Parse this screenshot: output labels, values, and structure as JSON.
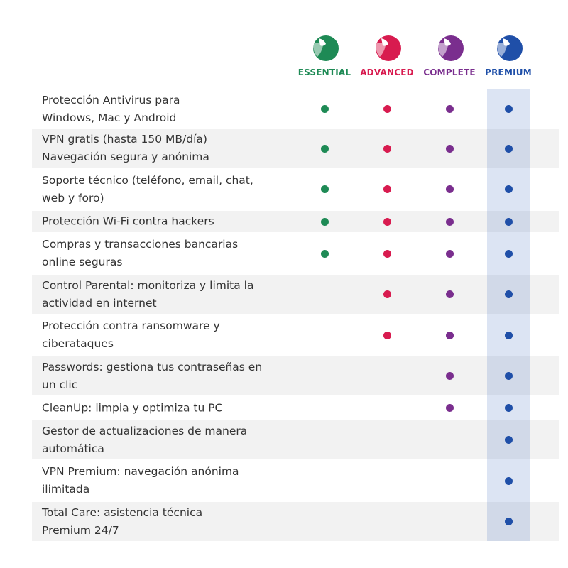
{
  "plans": [
    {
      "name": "ESSENTIAL",
      "color": "#1e8a55",
      "logo_icon": "shield-logo-icon"
    },
    {
      "name": "ADVANCED",
      "color": "#d81b4f",
      "logo_icon": "shield-logo-icon"
    },
    {
      "name": "COMPLETE",
      "color": "#7a2e8e",
      "logo_icon": "shield-logo-icon"
    },
    {
      "name": "PREMIUM",
      "color": "#1f4fa8",
      "logo_icon": "shield-logo-icon"
    }
  ],
  "features": [
    {
      "lines": [
        "Protección Antivirus para",
        "Windows, Mac y Android"
      ],
      "included": [
        true,
        true,
        true,
        true
      ]
    },
    {
      "lines": [
        "VPN gratis (hasta 150 MB/día)",
        "Navegación segura y anónima"
      ],
      "included": [
        true,
        true,
        true,
        true
      ]
    },
    {
      "lines": [
        "Soporte técnico (teléfono, email, chat,",
        "web y foro)"
      ],
      "included": [
        true,
        true,
        true,
        true
      ]
    },
    {
      "lines": [
        "Protección Wi-Fi contra hackers"
      ],
      "included": [
        true,
        true,
        true,
        true
      ]
    },
    {
      "lines": [
        "Compras y transacciones bancarias",
        "online seguras"
      ],
      "included": [
        true,
        true,
        true,
        true
      ]
    },
    {
      "lines": [
        "Control Parental: monitoriza y limita la",
        "actividad en internet"
      ],
      "included": [
        false,
        true,
        true,
        true
      ]
    },
    {
      "lines": [
        "Protección contra ransomware y",
        "ciberataques"
      ],
      "included": [
        false,
        true,
        true,
        true
      ]
    },
    {
      "lines": [
        "Passwords: gestiona tus contraseñas en",
        "un clic"
      ],
      "included": [
        false,
        false,
        true,
        true
      ]
    },
    {
      "lines": [
        "CleanUp: limpia y optimiza tu PC"
      ],
      "included": [
        false,
        false,
        true,
        true
      ]
    },
    {
      "lines": [
        "Gestor de actualizaciones de manera",
        "automática"
      ],
      "included": [
        false,
        false,
        false,
        true
      ]
    },
    {
      "lines": [
        "VPN Premium: navegación anónima",
        "ilimitada"
      ],
      "included": [
        false,
        false,
        false,
        true
      ]
    },
    {
      "lines": [
        "Total Care: asistencia técnica",
        "Premium 24/7"
      ],
      "included": [
        false,
        false,
        false,
        true
      ]
    }
  ]
}
